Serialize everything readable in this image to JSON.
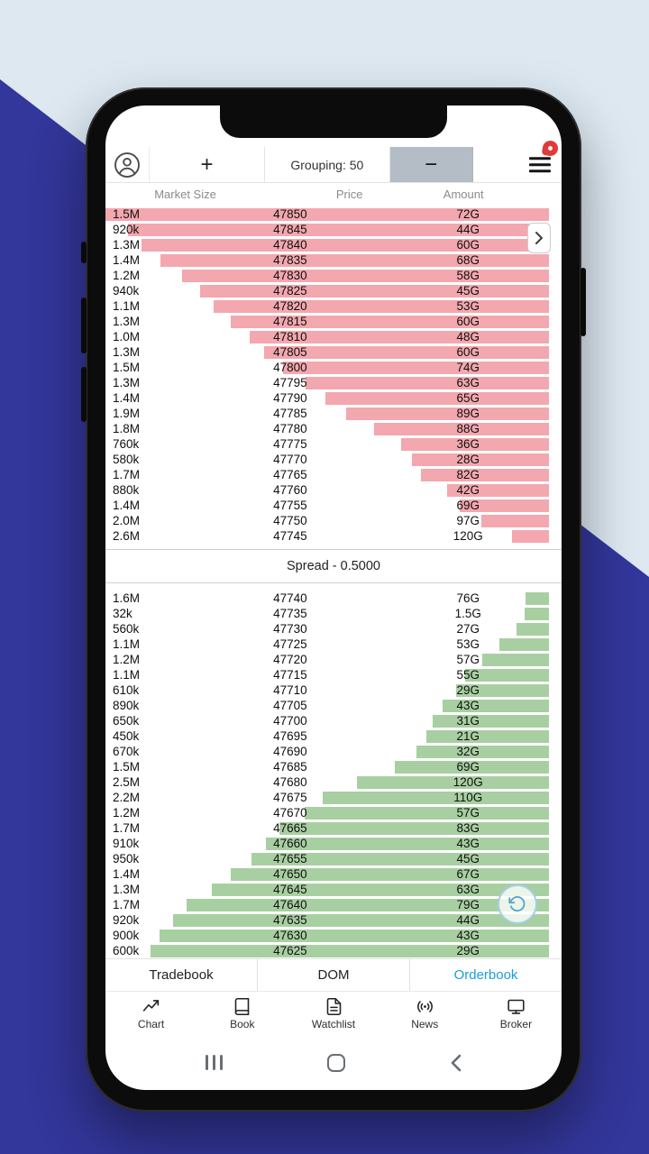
{
  "toolbar": {
    "plus_label": "+",
    "grouping_label": "Grouping: 50",
    "minus_label": "−"
  },
  "columns": {
    "size": "Market Size",
    "price": "Price",
    "amount": "Amount"
  },
  "orderbook": {
    "spread_label": "Spread - 0.5000",
    "asks": [
      {
        "size": "1.5M",
        "price": "47850",
        "amount": "72G"
      },
      {
        "size": "920k",
        "price": "47845",
        "amount": "44G"
      },
      {
        "size": "1.3M",
        "price": "47840",
        "amount": "60G"
      },
      {
        "size": "1.4M",
        "price": "47835",
        "amount": "68G"
      },
      {
        "size": "1.2M",
        "price": "47830",
        "amount": "58G"
      },
      {
        "size": "940k",
        "price": "47825",
        "amount": "45G"
      },
      {
        "size": "1.1M",
        "price": "47820",
        "amount": "53G"
      },
      {
        "size": "1.3M",
        "price": "47815",
        "amount": "60G"
      },
      {
        "size": "1.0M",
        "price": "47810",
        "amount": "48G"
      },
      {
        "size": "1.3M",
        "price": "47805",
        "amount": "60G"
      },
      {
        "size": "1.5M",
        "price": "47800",
        "amount": "74G"
      },
      {
        "size": "1.3M",
        "price": "47795",
        "amount": "63G"
      },
      {
        "size": "1.4M",
        "price": "47790",
        "amount": "65G"
      },
      {
        "size": "1.9M",
        "price": "47785",
        "amount": "89G"
      },
      {
        "size": "1.8M",
        "price": "47780",
        "amount": "88G"
      },
      {
        "size": "760k",
        "price": "47775",
        "amount": "36G"
      },
      {
        "size": "580k",
        "price": "47770",
        "amount": "28G"
      },
      {
        "size": "1.7M",
        "price": "47765",
        "amount": "82G"
      },
      {
        "size": "880k",
        "price": "47760",
        "amount": "42G"
      },
      {
        "size": "1.4M",
        "price": "47755",
        "amount": "69G"
      },
      {
        "size": "2.0M",
        "price": "47750",
        "amount": "97G"
      },
      {
        "size": "2.6M",
        "price": "47745",
        "amount": "120G"
      }
    ],
    "bids": [
      {
        "size": "1.6M",
        "price": "47740",
        "amount": "76G"
      },
      {
        "size": "32k",
        "price": "47735",
        "amount": "1.5G"
      },
      {
        "size": "560k",
        "price": "47730",
        "amount": "27G"
      },
      {
        "size": "1.1M",
        "price": "47725",
        "amount": "53G"
      },
      {
        "size": "1.2M",
        "price": "47720",
        "amount": "57G"
      },
      {
        "size": "1.1M",
        "price": "47715",
        "amount": "55G"
      },
      {
        "size": "610k",
        "price": "47710",
        "amount": "29G"
      },
      {
        "size": "890k",
        "price": "47705",
        "amount": "43G"
      },
      {
        "size": "650k",
        "price": "47700",
        "amount": "31G"
      },
      {
        "size": "450k",
        "price": "47695",
        "amount": "21G"
      },
      {
        "size": "670k",
        "price": "47690",
        "amount": "32G"
      },
      {
        "size": "1.5M",
        "price": "47685",
        "amount": "69G"
      },
      {
        "size": "2.5M",
        "price": "47680",
        "amount": "120G"
      },
      {
        "size": "2.2M",
        "price": "47675",
        "amount": "110G"
      },
      {
        "size": "1.2M",
        "price": "47670",
        "amount": "57G"
      },
      {
        "size": "1.7M",
        "price": "47665",
        "amount": "83G"
      },
      {
        "size": "910k",
        "price": "47660",
        "amount": "43G"
      },
      {
        "size": "950k",
        "price": "47655",
        "amount": "45G"
      },
      {
        "size": "1.4M",
        "price": "47650",
        "amount": "67G"
      },
      {
        "size": "1.3M",
        "price": "47645",
        "amount": "63G"
      },
      {
        "size": "1.7M",
        "price": "47640",
        "amount": "79G"
      },
      {
        "size": "920k",
        "price": "47635",
        "amount": "44G"
      },
      {
        "size": "900k",
        "price": "47630",
        "amount": "43G"
      },
      {
        "size": "600k",
        "price": "47625",
        "amount": "29G"
      }
    ]
  },
  "tabs": [
    {
      "label": "Tradebook",
      "active": false
    },
    {
      "label": "DOM",
      "active": false
    },
    {
      "label": "Orderbook",
      "active": true
    }
  ],
  "bottom_nav": [
    {
      "label": "Chart",
      "icon": "chart-icon"
    },
    {
      "label": "Book",
      "icon": "book-icon"
    },
    {
      "label": "Watchlist",
      "icon": "watchlist-icon"
    },
    {
      "label": "News",
      "icon": "news-icon"
    },
    {
      "label": "Broker",
      "icon": "broker-icon"
    }
  ],
  "icons": {
    "avatar": "person-circle",
    "menu": "hamburger",
    "next": "chevron-right",
    "refresh": "rotate-ccw",
    "android": [
      "recents-bars",
      "home-outline",
      "back-chevron"
    ]
  },
  "colors": {
    "ask_bar": "#f3a7af",
    "bid_bar": "#a8cfa1",
    "accent": "#1a9ed9",
    "minus_bg": "#b4bdc5",
    "bg_light": "#dde8f1",
    "bg_dark": "#33369a"
  }
}
